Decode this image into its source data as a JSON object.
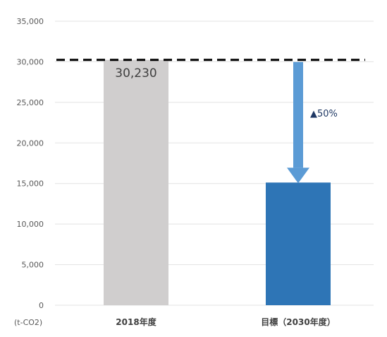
{
  "chart_data": {
    "type": "bar",
    "categories": [
      "2018年度",
      "目標（2030年度）"
    ],
    "values": [
      30230,
      15115
    ],
    "ylim": [
      0,
      35000
    ],
    "yticks": [
      "0",
      "5,000",
      "10,000",
      "15,000",
      "20,000",
      "25,000",
      "30,000",
      "35,000"
    ],
    "ytick_values": [
      0,
      5000,
      10000,
      15000,
      20000,
      25000,
      30000,
      35000
    ],
    "unit_label": "(t-CO2)",
    "data_labels": [
      "30,230",
      ""
    ],
    "reference_line": {
      "value": 30230,
      "style": "dashed"
    },
    "reduction_label": "▲50%",
    "grid": "horizontal",
    "colors": {
      "bar_2018": "#d0cece",
      "bar_target": "#2e75b6",
      "arrow": "#5b9bd5",
      "reference_line": "#000000",
      "grid": "#e3e3e3"
    }
  }
}
